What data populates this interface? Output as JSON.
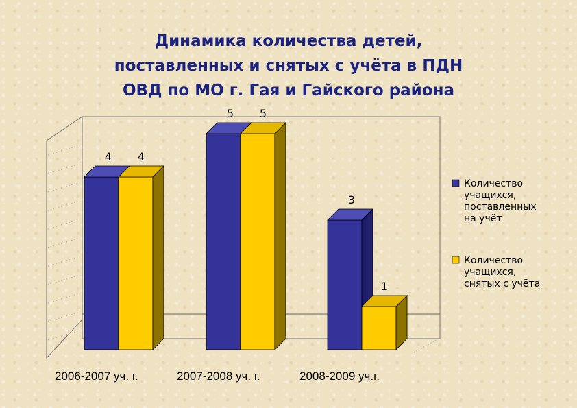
{
  "title_lines": [
    "Динамика количества детей,",
    "поставленных и снятых с учёта в ПДН",
    "ОВД по МО г. Гая и Гайского района"
  ],
  "colors": {
    "series_0": "#333399",
    "series_0_side": "#1f1f6b",
    "series_0_top": "#4d4db3",
    "series_1": "#ffcc00",
    "series_1_side": "#8c7300",
    "series_1_top": "#e6b800"
  },
  "chart_data": {
    "type": "bar",
    "title": "Динамика количества детей, поставленных и снятых с учёта в ПДН ОВД по МО г. Гая и Гайского района",
    "categories": [
      "2006-2007 уч. г.",
      "2007-2008 уч. г.",
      "2008-2009 уч.г."
    ],
    "series": [
      {
        "name": "Количество учащихся, поставленных на учёт",
        "legend_lines": [
          "Количество",
          "учащихся,",
          "поставленных",
          "на учёт"
        ],
        "values": [
          4,
          5,
          3
        ]
      },
      {
        "name": "Количество учащихся, снятых с учёта",
        "legend_lines": [
          "Количество",
          "учащихся,",
          "снятых с учёта"
        ],
        "values": [
          4,
          5,
          1
        ]
      }
    ],
    "ylim": [
      0,
      5
    ],
    "grid": true,
    "legend": "right",
    "three_d": true
  }
}
